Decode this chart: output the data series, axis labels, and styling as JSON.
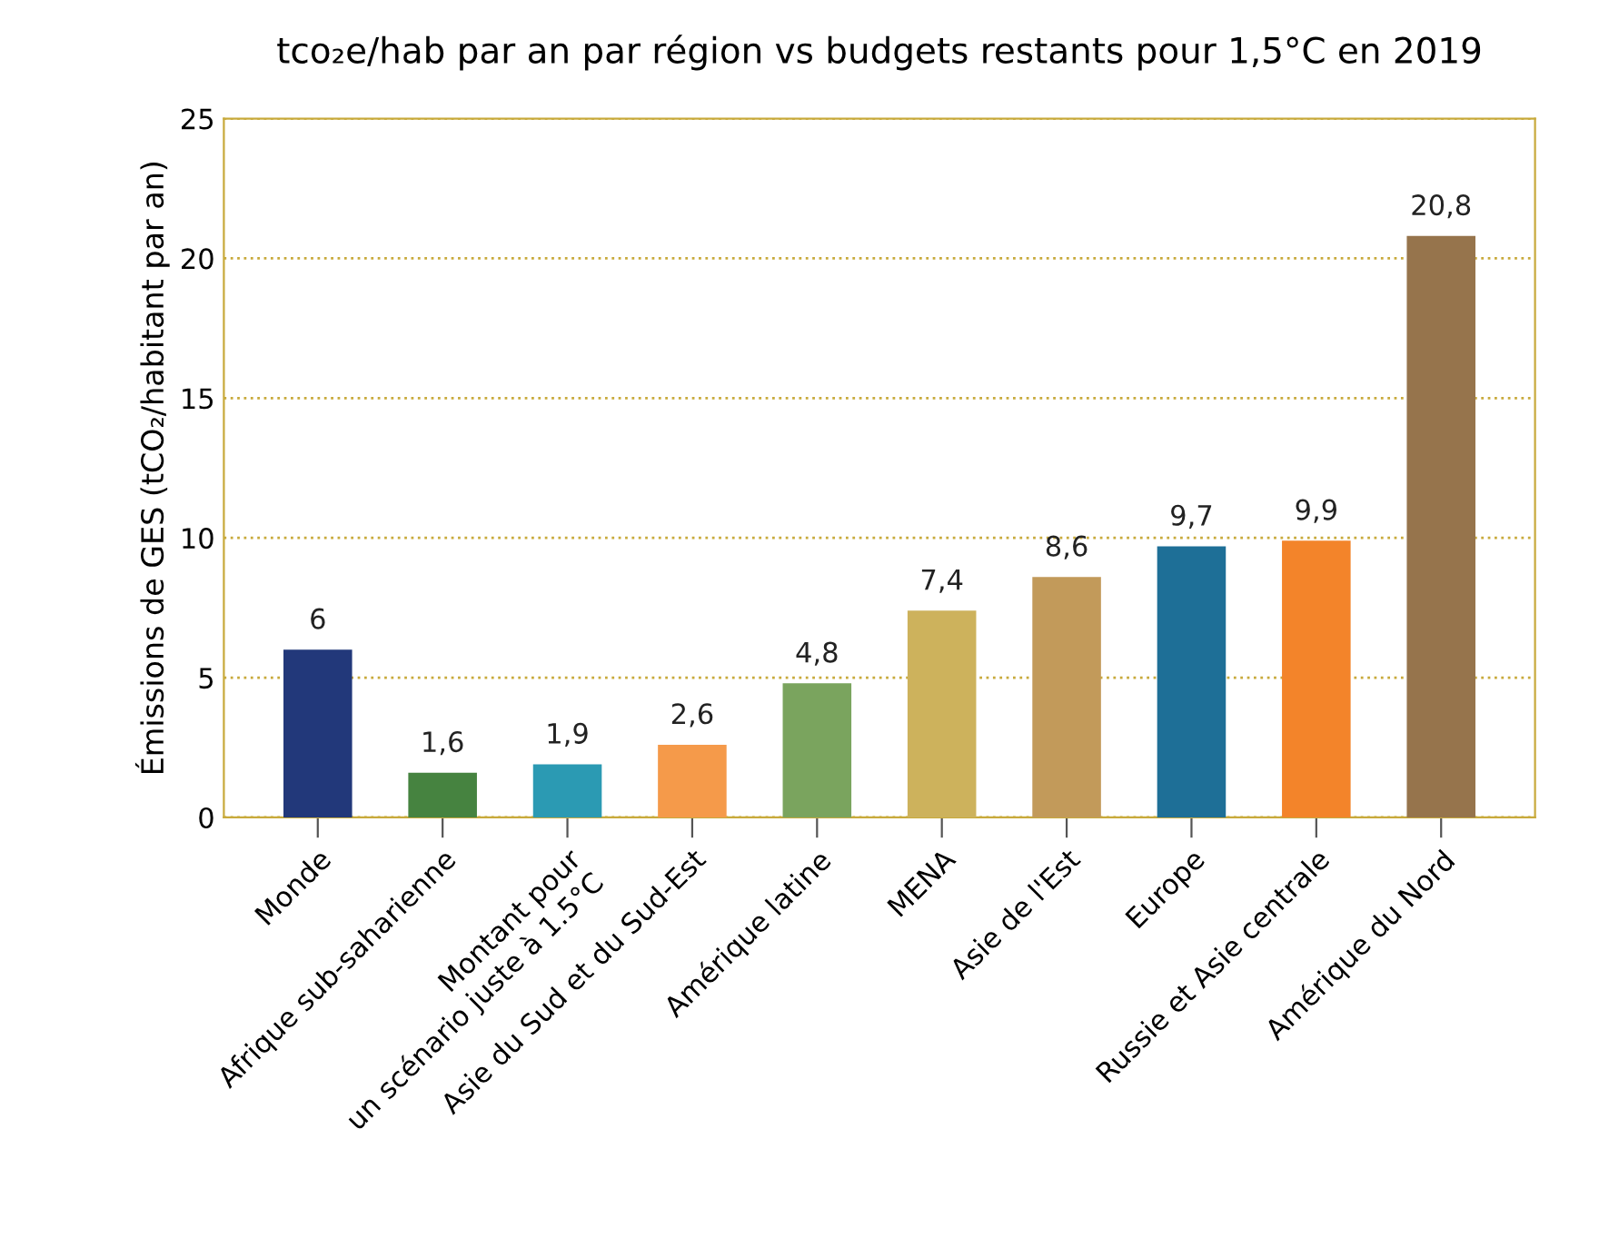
{
  "chart_data": {
    "type": "bar",
    "title": "tco₂e/hab par an par région vs budgets restants pour 1,5°C en 2019",
    "ylabel": "Émissions de GES (tCO₂/habitant par an)",
    "categories": [
      "Monde",
      "Afrique sub-saharienne",
      "Montant pour\nun scénario juste à 1.5°C",
      "Asie du Sud et du Sud-Est",
      "Amérique latine",
      "MENA",
      "Asie de l'Est",
      "Europe",
      "Russie et Asie centrale",
      "Amérique du Nord"
    ],
    "values": [
      6,
      1.6,
      1.9,
      2.6,
      4.8,
      7.4,
      8.6,
      9.7,
      9.9,
      20.8
    ],
    "value_labels": [
      "6",
      "1,6",
      "1,9",
      "2,6",
      "4,8",
      "7,4",
      "8,6",
      "9,7",
      "9,9",
      "20,8"
    ],
    "colors": [
      "#22387a",
      "#468340",
      "#2b9ab3",
      "#f59a4a",
      "#7aa45e",
      "#cdb25c",
      "#c29a5a",
      "#1e6f97",
      "#f3842a",
      "#96744c"
    ],
    "ylim": [
      0,
      25
    ],
    "yticks": [
      0,
      5,
      10,
      15,
      20,
      25
    ],
    "grid": "y"
  }
}
